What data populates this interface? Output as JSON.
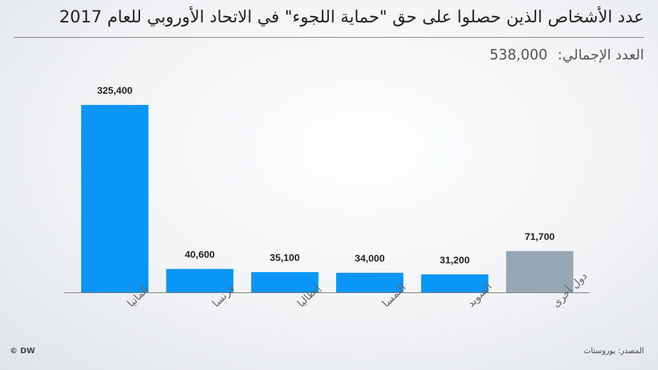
{
  "header": {
    "title": "عدد الأشخاص الذين حصلوا على حق \"حماية اللجوء\" في الاتحاد الأوروبي للعام 2017",
    "total_label": "العدد الإجمالي:",
    "total_value": "538,000"
  },
  "footer": {
    "copyright": "© DW",
    "source": "المصدر: يوروستات"
  },
  "colors": {
    "bar": "#0a96f6",
    "bar_other": "#96a8b6",
    "axis": "#777777"
  },
  "chart_data": {
    "type": "bar",
    "categories": [
      "ألمانيا",
      "فرنسا",
      "إيطاليا",
      "النمسا",
      "السويد",
      "دول أخرى"
    ],
    "values": [
      325400,
      40600,
      35100,
      34000,
      31200,
      71700
    ],
    "value_labels": [
      "325,400",
      "40,600",
      "35,100",
      "34,000",
      "31,200",
      "71,700"
    ],
    "highlight_last": true,
    "title": "عدد الأشخاص الذين حصلوا على حق \"حماية اللجوء\" في الاتحاد الأوروبي للعام 2017",
    "xlabel": "",
    "ylabel": "",
    "ylim": [
      0,
      325400
    ],
    "grid": false
  }
}
